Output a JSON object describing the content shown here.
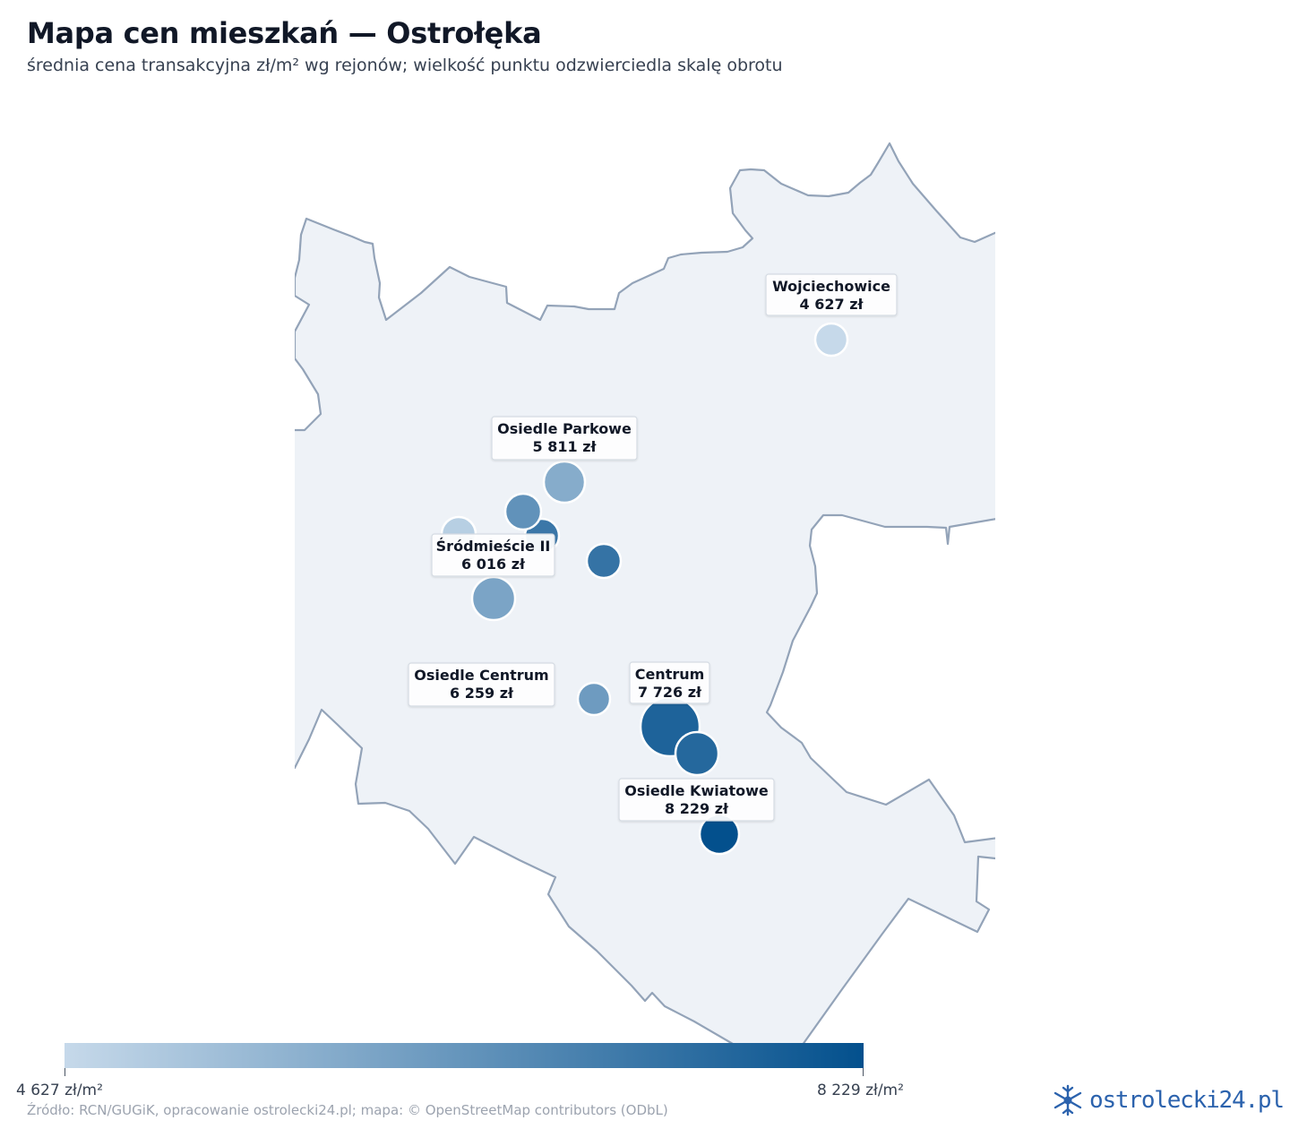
{
  "title": "Mapa cen mieszkań — Ostrołęka",
  "subtitle": "średnia cena transakcyjna zł/m² wg rejonów; wielkość punktu odzwierciedla skalę obrotu",
  "colors": {
    "land_fill": "#eef2f7",
    "border": "#93a3b8",
    "scale_min": "#c6d9ea",
    "scale_max": "#03508d",
    "point_stroke": "#ffffff"
  },
  "legend": {
    "min_label": "4 627 zł/m²",
    "max_label": "8 229 zł/m²",
    "min_value": 4627,
    "max_value": 8229
  },
  "labels": [
    {
      "name": "Wojciechowice",
      "price": "4 627 zł"
    },
    {
      "name": "Osiedle Parkowe",
      "price": "5 811 zł"
    },
    {
      "name": "Śródmieście II",
      "price": "6 016 zł"
    },
    {
      "name": "Osiedle Centrum",
      "price": "6 259 zł"
    },
    {
      "name": "Centrum",
      "price": "7 726 zł"
    },
    {
      "name": "Osiedle Kwiatowe",
      "price": "8 229 zł"
    }
  ],
  "chart_data": {
    "type": "scatter",
    "value_unit": "zł/m²",
    "points": [
      {
        "label": "Wojciechowice",
        "value": 4627
      },
      {
        "label": "Osiedle Parkowe",
        "value": 5811
      },
      {
        "label": "Śródmieście II",
        "value": 6016
      },
      {
        "label": "Osiedle Centrum",
        "value": 6259
      },
      {
        "label": "Centrum",
        "value": 7726
      },
      {
        "label": "Osiedle Kwiatowe",
        "value": 8229
      },
      {
        "label": "",
        "value": 4900
      },
      {
        "label": "",
        "value": 6500
      },
      {
        "label": "",
        "value": 7200
      },
      {
        "label": "",
        "value": 7300
      },
      {
        "label": "",
        "value": 7600
      }
    ]
  },
  "source": "Źródło: RCN/GUGiK, opracowanie ostrolecki24.pl; mapa: © OpenStreetMap contributors (ODbL)",
  "brand": {
    "text": "ostrolecki24.pl",
    "icon": "snowflake-folk-icon"
  }
}
